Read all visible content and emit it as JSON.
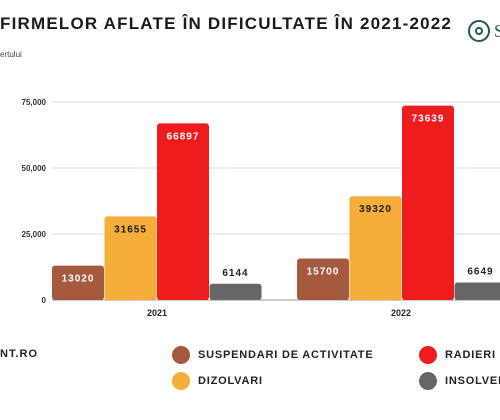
{
  "header": {
    "title": "FIRMELOR AFLATE ÎN DIFICULTATE ÎN 2021-2022",
    "subtitle": "ertului",
    "logo_text": "S"
  },
  "footer": {
    "source": "NT.RO"
  },
  "colors": {
    "suspendari": "#a55a3f",
    "dizolvari": "#f6ad3c",
    "radieri": "#ee1c1c",
    "insolvente": "#666666"
  },
  "chart_data": {
    "type": "bar",
    "categories": [
      "2021",
      "2022"
    ],
    "series": [
      {
        "name": "SUSPENDARI DE ACTIVITATE",
        "values": [
          13020,
          15700
        ],
        "color": "#a55a3f"
      },
      {
        "name": "DIZOLVARI",
        "values": [
          31655,
          39320
        ],
        "color": "#f6ad3c"
      },
      {
        "name": "RADIERI",
        "values": [
          66897,
          73639
        ],
        "color": "#ee1c1c"
      },
      {
        "name": "INSOLVEN",
        "values": [
          6144,
          6649
        ],
        "color": "#666666"
      }
    ],
    "y_ticks": [
      "0",
      "25,000",
      "50,000",
      "75,000"
    ],
    "y_tick_values": [
      0,
      25000,
      50000,
      75000
    ],
    "ylim": [
      0,
      75000
    ],
    "grid": true,
    "legend_position": "bottom"
  }
}
